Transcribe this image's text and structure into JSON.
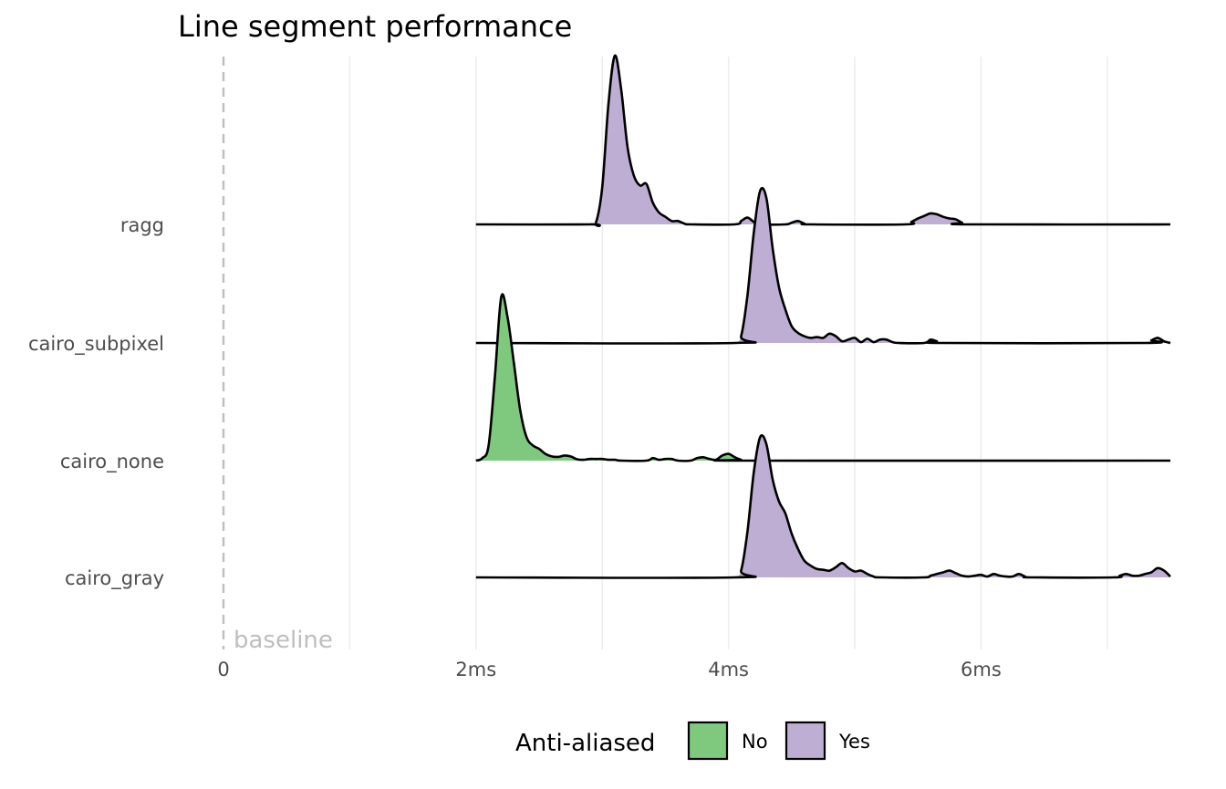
{
  "chart_data": {
    "type": "ridgeline-density",
    "title": "Line segment performance",
    "xlabel": "",
    "ylabel": "",
    "x_unit": "ms",
    "xlim": [
      0,
      7.5
    ],
    "x_ticks": [
      {
        "value": 0,
        "label": "0"
      },
      {
        "value": 2,
        "label": "2ms"
      },
      {
        "value": 4,
        "label": "4ms"
      },
      {
        "value": 6,
        "label": "6ms"
      }
    ],
    "minor_grid": [
      1,
      3,
      5,
      7
    ],
    "grid": true,
    "baseline": {
      "value": 0,
      "label": "baseline",
      "style": "dashed"
    },
    "categories": [
      "ragg",
      "cairo_subpixel",
      "cairo_none",
      "cairo_gray"
    ],
    "colors": {
      "No": "#7fc97f",
      "Yes": "#beaed4"
    },
    "legend": {
      "title": "Anti-aliased",
      "position": "bottom",
      "entries": [
        "No",
        "Yes"
      ]
    },
    "series": [
      {
        "category": "ragg",
        "anti_aliased": "Yes",
        "range": [
          2.0,
          7.5
        ],
        "fill_range": [
          2.95,
          5.85
        ],
        "points": [
          [
            2.0,
            0
          ],
          [
            2.9,
            0
          ],
          [
            2.95,
            0.01
          ],
          [
            3.0,
            0.22
          ],
          [
            3.05,
            0.72
          ],
          [
            3.1,
            1.0
          ],
          [
            3.15,
            0.8
          ],
          [
            3.2,
            0.46
          ],
          [
            3.25,
            0.29
          ],
          [
            3.3,
            0.23
          ],
          [
            3.35,
            0.24
          ],
          [
            3.4,
            0.13
          ],
          [
            3.45,
            0.07
          ],
          [
            3.5,
            0.045
          ],
          [
            3.55,
            0.02
          ],
          [
            3.6,
            0.02
          ],
          [
            3.65,
            0.005
          ],
          [
            3.7,
            0
          ],
          [
            4.05,
            0
          ],
          [
            4.1,
            0.02
          ],
          [
            4.15,
            0.04
          ],
          [
            4.2,
            0.015
          ],
          [
            4.25,
            0.0
          ],
          [
            4.45,
            0
          ],
          [
            4.5,
            0.01
          ],
          [
            4.55,
            0.02
          ],
          [
            4.6,
            0.005
          ],
          [
            4.65,
            0
          ],
          [
            5.4,
            0
          ],
          [
            5.45,
            0.015
          ],
          [
            5.5,
            0.035
          ],
          [
            5.55,
            0.05
          ],
          [
            5.6,
            0.065
          ],
          [
            5.65,
            0.06
          ],
          [
            5.7,
            0.045
          ],
          [
            5.75,
            0.035
          ],
          [
            5.8,
            0.03
          ],
          [
            5.85,
            0.01
          ],
          [
            5.9,
            0
          ],
          [
            7.5,
            0
          ]
        ]
      },
      {
        "category": "cairo_subpixel",
        "anti_aliased": "Yes",
        "range": [
          2.0,
          7.5
        ],
        "fill_range": [
          4.05,
          7.5
        ],
        "points": [
          [
            2.0,
            0
          ],
          [
            4.05,
            0
          ],
          [
            4.1,
            0.04
          ],
          [
            4.15,
            0.28
          ],
          [
            4.2,
            0.65
          ],
          [
            4.25,
            0.9
          ],
          [
            4.3,
            0.86
          ],
          [
            4.35,
            0.56
          ],
          [
            4.4,
            0.33
          ],
          [
            4.45,
            0.2
          ],
          [
            4.5,
            0.1
          ],
          [
            4.55,
            0.06
          ],
          [
            4.6,
            0.04
          ],
          [
            4.65,
            0.03
          ],
          [
            4.7,
            0.035
          ],
          [
            4.75,
            0.03
          ],
          [
            4.8,
            0.055
          ],
          [
            4.85,
            0.04
          ],
          [
            4.9,
            0.01
          ],
          [
            4.95,
            0.02
          ],
          [
            5.0,
            0.03
          ],
          [
            5.05,
            0.005
          ],
          [
            5.1,
            0.025
          ],
          [
            5.15,
            0.005
          ],
          [
            5.2,
            0.02
          ],
          [
            5.25,
            0.02
          ],
          [
            5.3,
            0.005
          ],
          [
            5.35,
            0
          ],
          [
            5.55,
            0
          ],
          [
            5.6,
            0.02
          ],
          [
            5.65,
            0.01
          ],
          [
            5.7,
            0
          ],
          [
            7.3,
            0
          ],
          [
            7.35,
            0.015
          ],
          [
            7.4,
            0.03
          ],
          [
            7.45,
            0.01
          ],
          [
            7.5,
            0
          ]
        ]
      },
      {
        "category": "cairo_none",
        "anti_aliased": "No",
        "range": [
          2.0,
          7.5
        ],
        "fill_range": [
          2.0,
          4.05
        ],
        "points": [
          [
            2.0,
            0
          ],
          [
            2.05,
            0.015
          ],
          [
            2.1,
            0.09
          ],
          [
            2.15,
            0.5
          ],
          [
            2.2,
            0.97
          ],
          [
            2.25,
            0.85
          ],
          [
            2.3,
            0.58
          ],
          [
            2.35,
            0.3
          ],
          [
            2.4,
            0.14
          ],
          [
            2.45,
            0.09
          ],
          [
            2.5,
            0.07
          ],
          [
            2.55,
            0.04
          ],
          [
            2.6,
            0.025
          ],
          [
            2.65,
            0.022
          ],
          [
            2.7,
            0.03
          ],
          [
            2.75,
            0.025
          ],
          [
            2.8,
            0.008
          ],
          [
            2.85,
            0.005
          ],
          [
            2.9,
            0.01
          ],
          [
            2.95,
            0.01
          ],
          [
            3.0,
            0.01
          ],
          [
            3.05,
            0.005
          ],
          [
            3.1,
            0.005
          ],
          [
            3.15,
            0
          ],
          [
            3.35,
            0
          ],
          [
            3.4,
            0.015
          ],
          [
            3.45,
            0.005
          ],
          [
            3.5,
            0.01
          ],
          [
            3.55,
            0.01
          ],
          [
            3.6,
            0
          ],
          [
            3.7,
            0
          ],
          [
            3.75,
            0.015
          ],
          [
            3.8,
            0.02
          ],
          [
            3.85,
            0.01
          ],
          [
            3.9,
            0.005
          ],
          [
            3.95,
            0.03
          ],
          [
            4.0,
            0.04
          ],
          [
            4.05,
            0.02
          ],
          [
            4.1,
            0.005
          ],
          [
            4.15,
            0
          ],
          [
            7.5,
            0
          ]
        ]
      },
      {
        "category": "cairo_gray",
        "anti_aliased": "Yes",
        "range": [
          2.0,
          7.5
        ],
        "fill_range": [
          4.05,
          7.5
        ],
        "points": [
          [
            2.0,
            0
          ],
          [
            4.05,
            0
          ],
          [
            4.1,
            0.04
          ],
          [
            4.15,
            0.27
          ],
          [
            4.2,
            0.62
          ],
          [
            4.25,
            0.83
          ],
          [
            4.3,
            0.79
          ],
          [
            4.35,
            0.58
          ],
          [
            4.4,
            0.45
          ],
          [
            4.45,
            0.38
          ],
          [
            4.5,
            0.26
          ],
          [
            4.55,
            0.17
          ],
          [
            4.6,
            0.1
          ],
          [
            4.65,
            0.07
          ],
          [
            4.7,
            0.05
          ],
          [
            4.75,
            0.045
          ],
          [
            4.8,
            0.04
          ],
          [
            4.85,
            0.06
          ],
          [
            4.9,
            0.085
          ],
          [
            4.95,
            0.055
          ],
          [
            5.0,
            0.035
          ],
          [
            5.05,
            0.04
          ],
          [
            5.1,
            0.02
          ],
          [
            5.15,
            0.005
          ],
          [
            5.2,
            0
          ],
          [
            5.55,
            0
          ],
          [
            5.6,
            0.01
          ],
          [
            5.65,
            0.02
          ],
          [
            5.7,
            0.03
          ],
          [
            5.75,
            0.04
          ],
          [
            5.8,
            0.025
          ],
          [
            5.85,
            0.01
          ],
          [
            5.9,
            0.005
          ],
          [
            5.95,
            0.01
          ],
          [
            6.0,
            0.015
          ],
          [
            6.05,
            0.005
          ],
          [
            6.1,
            0.02
          ],
          [
            6.15,
            0.01
          ],
          [
            6.2,
            0.005
          ],
          [
            6.25,
            0.005
          ],
          [
            6.3,
            0.02
          ],
          [
            6.35,
            0.005
          ],
          [
            6.4,
            0
          ],
          [
            7.05,
            0
          ],
          [
            7.1,
            0.01
          ],
          [
            7.15,
            0.02
          ],
          [
            7.2,
            0.01
          ],
          [
            7.25,
            0.01
          ],
          [
            7.3,
            0.02
          ],
          [
            7.35,
            0.03
          ],
          [
            7.4,
            0.055
          ],
          [
            7.45,
            0.04
          ],
          [
            7.5,
            0.005
          ]
        ]
      }
    ]
  }
}
